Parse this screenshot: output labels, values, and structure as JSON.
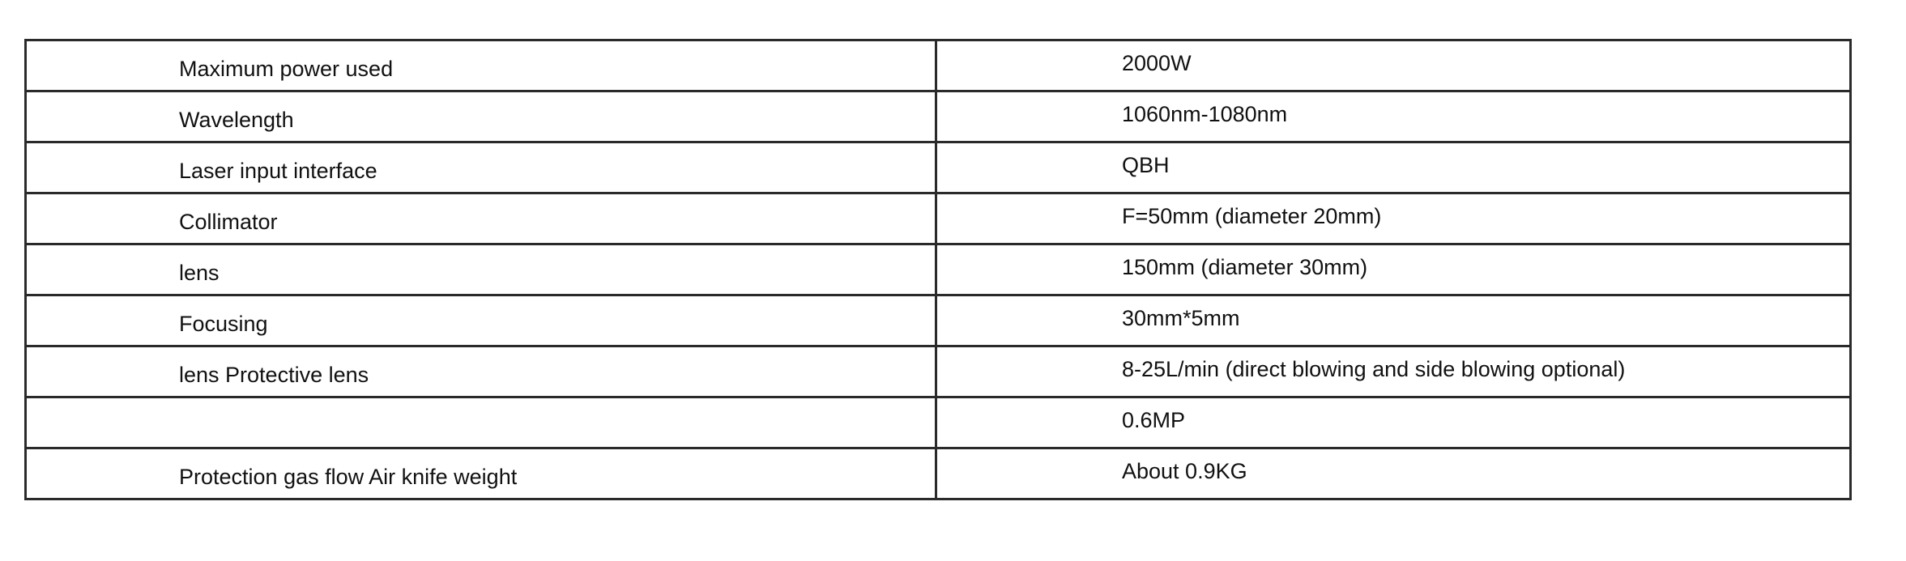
{
  "rows": [
    {
      "label": "Maximum power used",
      "value": "2000W"
    },
    {
      "label": "Wavelength",
      "value": "1060nm-1080nm"
    },
    {
      "label": "Laser input interface",
      "value": "QBH"
    },
    {
      "label": "Collimator",
      "value": "F=50mm (diameter 20mm)"
    },
    {
      "label": "lens",
      "value": "150mm (diameter 30mm)"
    },
    {
      "label": "Focusing",
      "value": "30mm*5mm"
    },
    {
      "label": "lens Protective lens",
      "value": "8-25L/min (direct blowing and side blowing optional)"
    },
    {
      "label": "",
      "value": "0.6MP"
    },
    {
      "label": "Protection gas flow Air knife weight",
      "value": "About 0.9KG"
    }
  ]
}
